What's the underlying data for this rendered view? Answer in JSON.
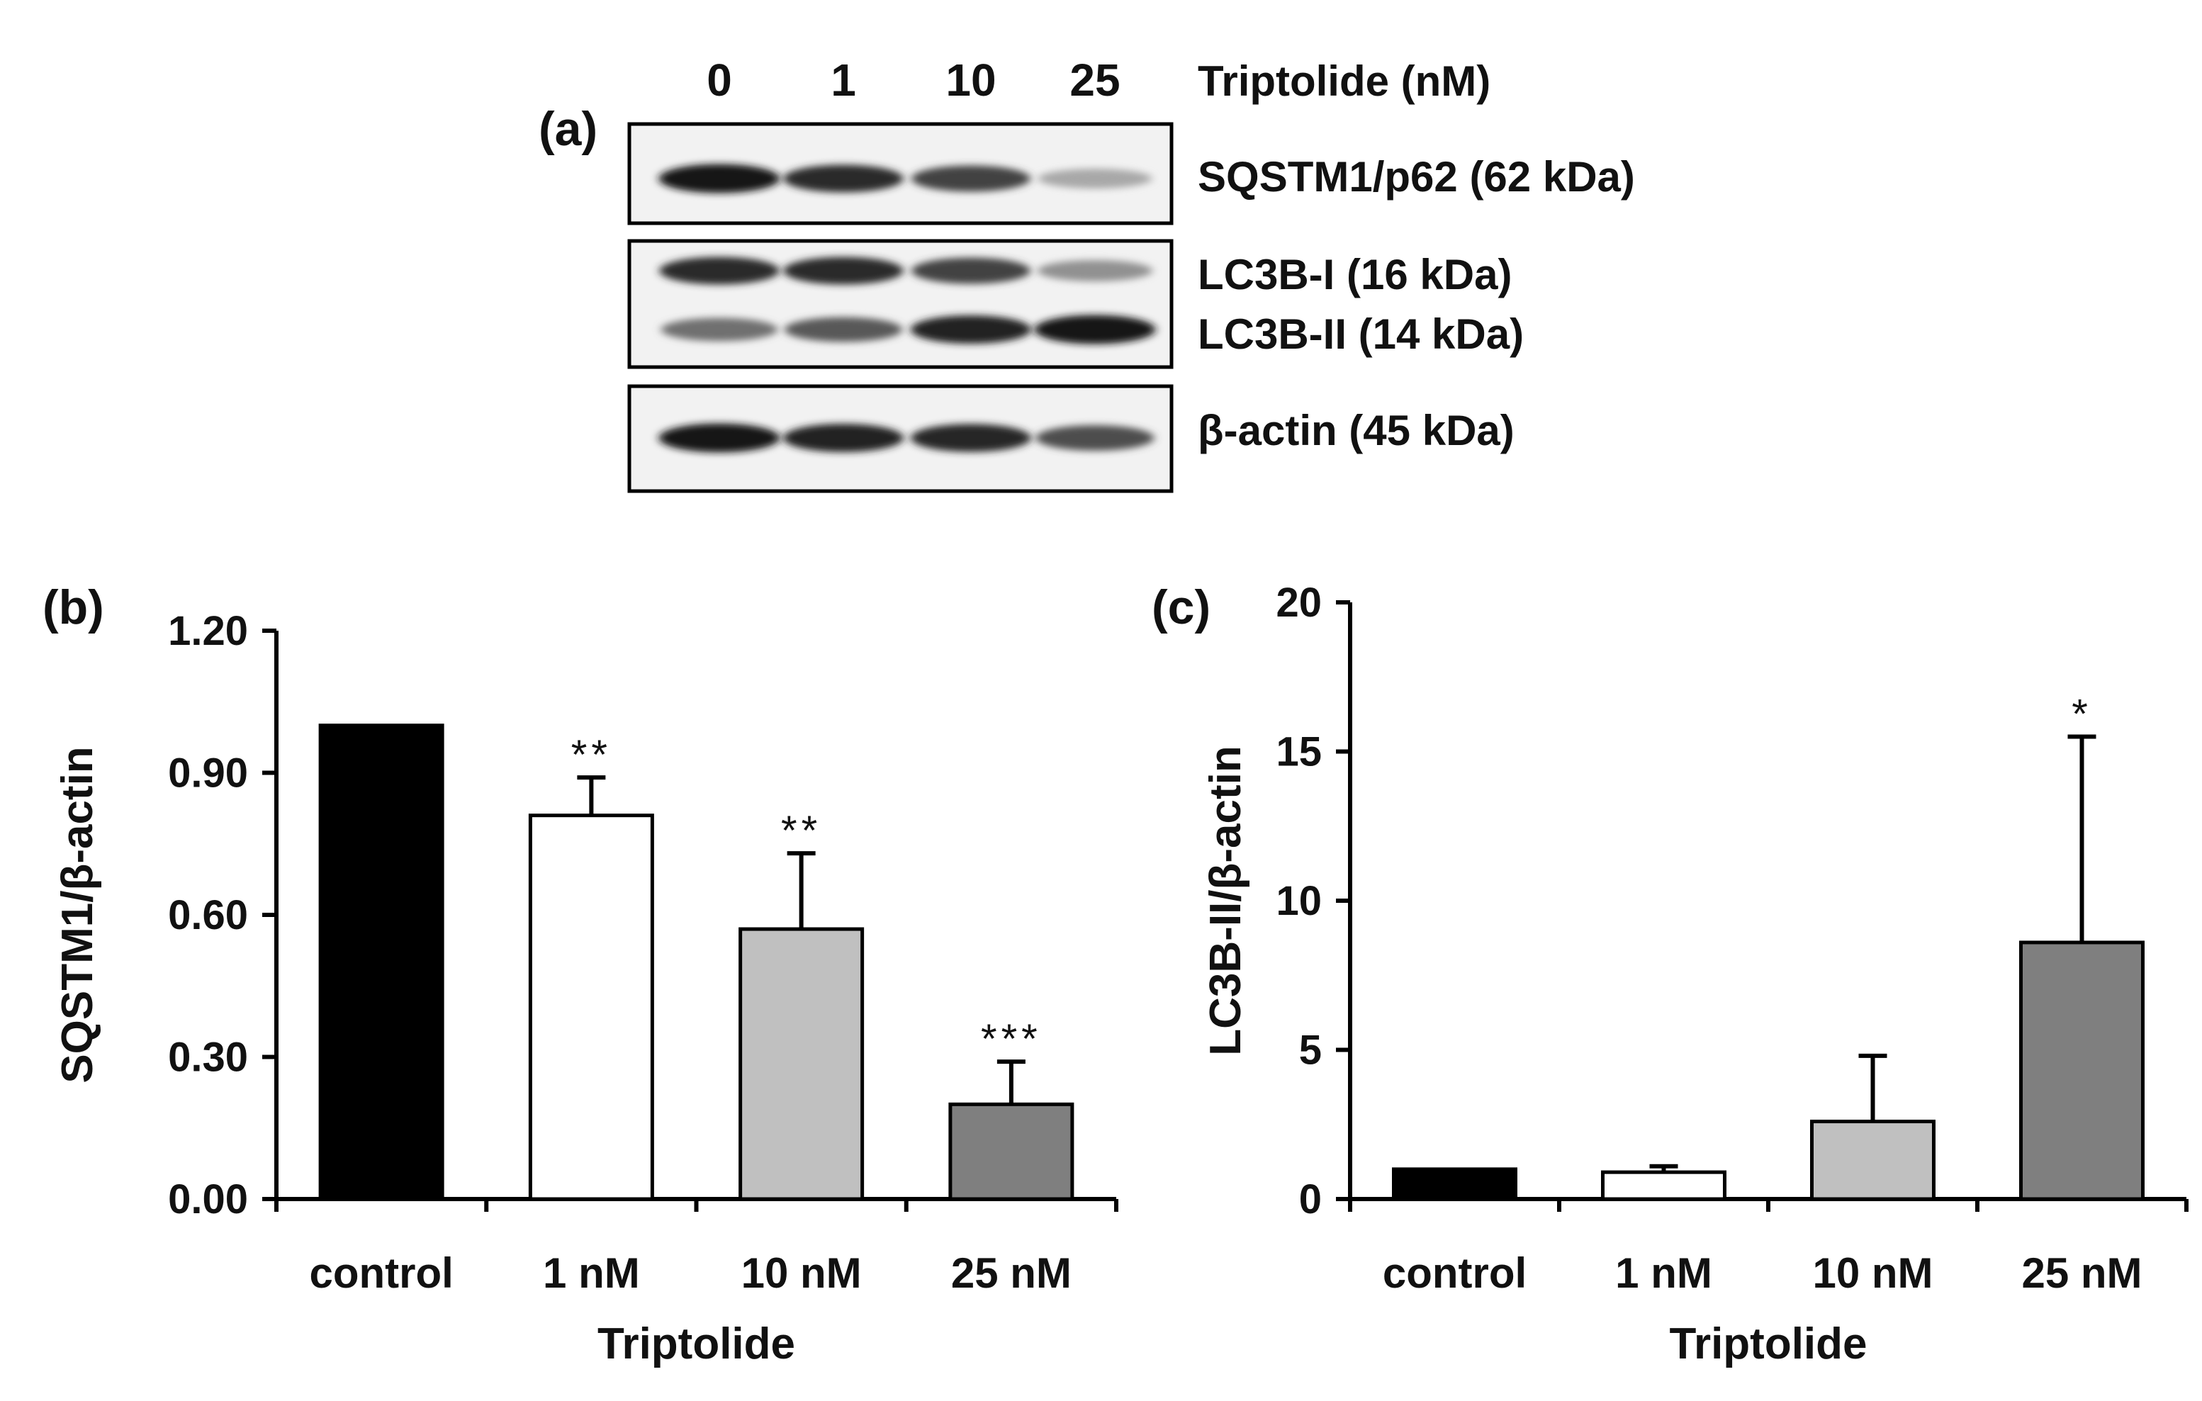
{
  "panel_a": {
    "letter": "(a)",
    "treatment_label": "Triptolide (nM)",
    "lanes": [
      "0",
      "1",
      "10",
      "25"
    ],
    "blots": [
      {
        "labels": [
          "SQSTM1/p62 (62 kDa)"
        ],
        "band_intensity": [
          [
            0.95,
            0.85,
            0.75,
            0.3
          ]
        ]
      },
      {
        "labels": [
          "LC3B-I (16 kDa)",
          "LC3B-II (14 kDa)"
        ],
        "band_intensity": [
          [
            0.85,
            0.85,
            0.75,
            0.4
          ],
          [
            0.55,
            0.65,
            0.9,
            0.95
          ]
        ]
      },
      {
        "labels": [
          "β-actin (45 kDa)"
        ],
        "band_intensity": [
          [
            0.95,
            0.9,
            0.88,
            0.7
          ]
        ]
      }
    ]
  },
  "chart_data": [
    {
      "panel": "(b)",
      "type": "bar",
      "categories": [
        "control",
        "1 nM",
        "10 nM",
        "25 nM"
      ],
      "values": [
        1.0,
        0.81,
        0.57,
        0.2
      ],
      "errors": [
        0,
        0.08,
        0.16,
        0.09
      ],
      "significance": [
        "",
        "**",
        "**",
        "***"
      ],
      "colors": [
        "#000000",
        "#ffffff",
        "#c0c0c0",
        "#7f7f7f"
      ],
      "ylabel": "SQSTM1/β-actin",
      "xlabel": "Triptolide",
      "ylim": [
        0,
        1.2
      ],
      "yticks": [
        "0.00",
        "0.30",
        "0.60",
        "0.90",
        "1.20"
      ]
    },
    {
      "panel": "(c)",
      "type": "bar",
      "categories": [
        "control",
        "1 nM",
        "10 nM",
        "25 nM"
      ],
      "values": [
        1.0,
        0.9,
        2.6,
        8.6
      ],
      "errors": [
        0,
        0.2,
        2.2,
        6.9
      ],
      "significance": [
        "",
        "",
        "",
        "*"
      ],
      "colors": [
        "#000000",
        "#ffffff",
        "#c0c0c0",
        "#7f7f7f"
      ],
      "ylabel": "LC3B-II/β-actin",
      "xlabel": "Triptolide",
      "ylim": [
        0,
        20
      ],
      "yticks": [
        "0",
        "5",
        "10",
        "15",
        "20"
      ]
    }
  ]
}
